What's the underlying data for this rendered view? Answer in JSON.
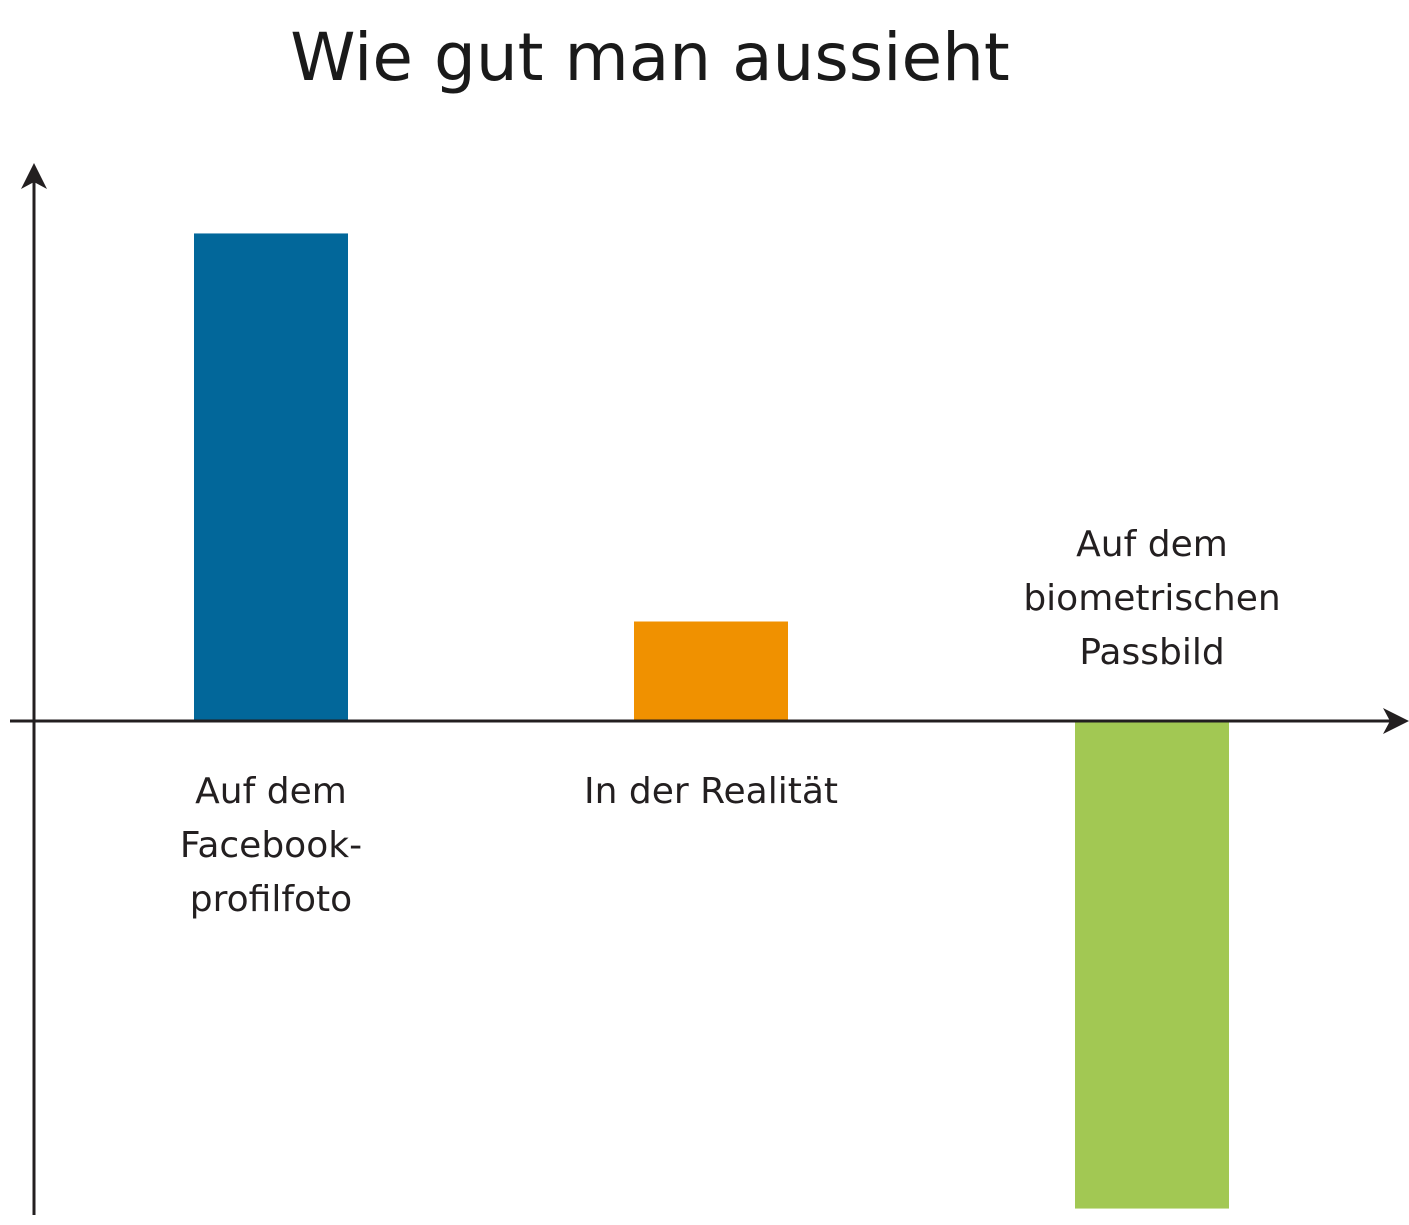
{
  "chart_data": {
    "type": "bar",
    "title": "Wie gut man aussieht",
    "xlabel": "",
    "ylabel": "",
    "categories": [
      [
        "Auf dem",
        "Facebook-",
        "profilfoto"
      ],
      [
        "In der Realität"
      ],
      [
        "Auf dem",
        "biometrischen",
        "Passbild"
      ]
    ],
    "values": [
      4.9,
      1.0,
      -4.9
    ],
    "colors": [
      "#02679a",
      "#f09100",
      "#a2c853"
    ],
    "ylim": [
      -5,
      5.6
    ],
    "grid": false,
    "ticks": false,
    "legend": "none"
  }
}
